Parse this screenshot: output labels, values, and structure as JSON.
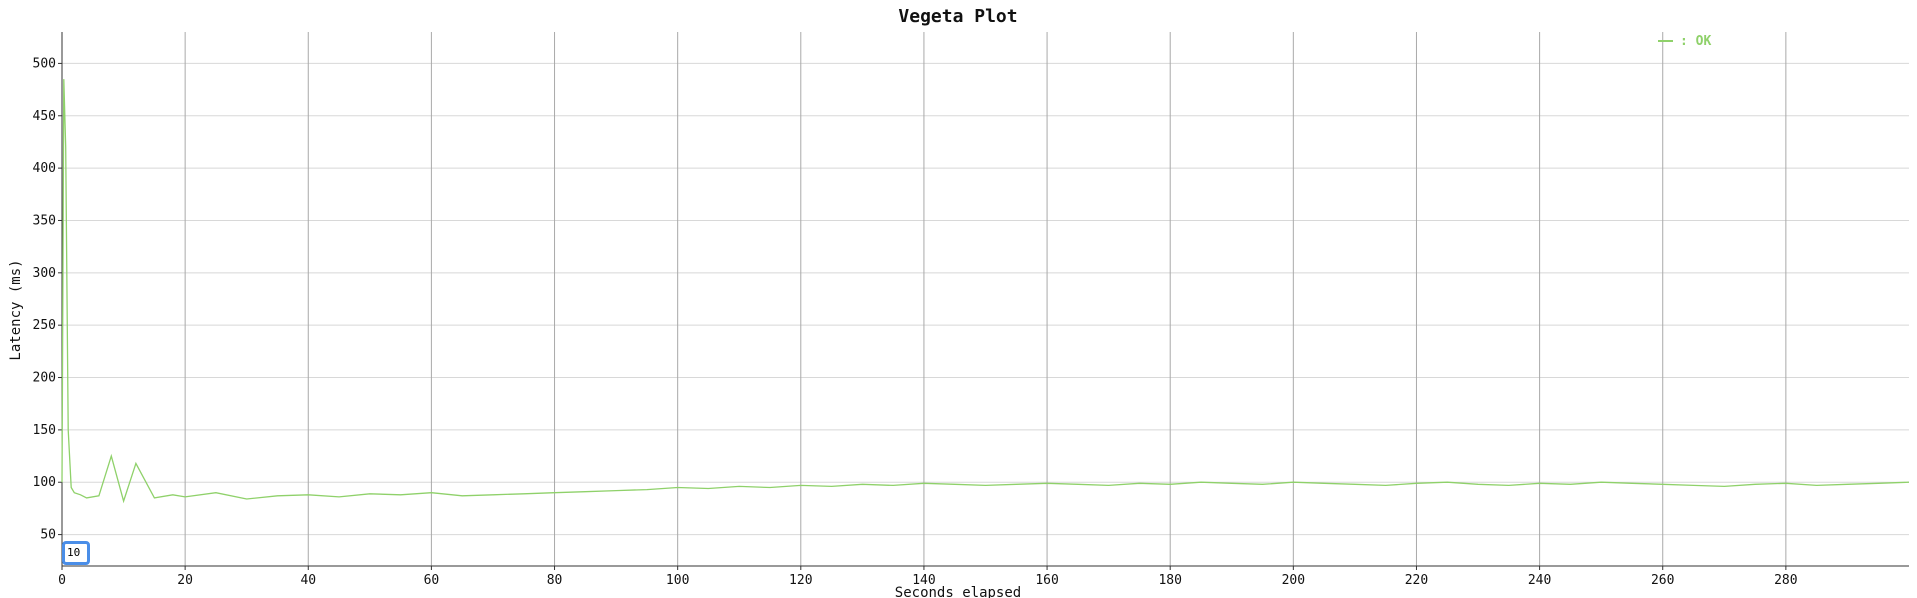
{
  "chart_data": {
    "type": "line",
    "title": "Vegeta Plot",
    "xlabel": "Seconds elapsed",
    "ylabel": "Latency (ms)",
    "xlim": [
      0,
      300
    ],
    "ylim": [
      20,
      530
    ],
    "x_ticks": [
      0,
      20,
      40,
      60,
      80,
      100,
      120,
      140,
      160,
      180,
      200,
      220,
      240,
      260,
      280
    ],
    "y_ticks": [
      50,
      100,
      150,
      200,
      250,
      300,
      350,
      400,
      450,
      500
    ],
    "grid": true,
    "legend": {
      "position": "top-right",
      "label": "OK"
    },
    "ymin_input_value": "10",
    "series": [
      {
        "name": "OK",
        "color": "#8fd16a",
        "x": [
          0,
          0.3,
          0.6,
          1.0,
          1.5,
          2,
          3,
          4,
          6,
          8,
          10,
          12,
          15,
          18,
          20,
          25,
          30,
          35,
          40,
          45,
          50,
          55,
          60,
          65,
          70,
          75,
          80,
          85,
          90,
          95,
          100,
          105,
          110,
          115,
          120,
          125,
          130,
          135,
          140,
          145,
          150,
          155,
          160,
          165,
          170,
          175,
          180,
          185,
          190,
          195,
          200,
          205,
          210,
          215,
          220,
          225,
          230,
          235,
          240,
          245,
          250,
          255,
          260,
          265,
          270,
          275,
          280,
          285,
          290,
          295,
          300
        ],
        "y": [
          100,
          485,
          420,
          150,
          95,
          90,
          88,
          85,
          87,
          125,
          82,
          118,
          85,
          88,
          86,
          90,
          84,
          87,
          88,
          86,
          89,
          88,
          90,
          87,
          88,
          89,
          90,
          91,
          92,
          93,
          95,
          94,
          96,
          95,
          97,
          96,
          98,
          97,
          99,
          98,
          97,
          98,
          99,
          98,
          97,
          99,
          98,
          100,
          99,
          98,
          100,
          99,
          98,
          97,
          99,
          100,
          98,
          97,
          99,
          98,
          100,
          99,
          98,
          97,
          96,
          98,
          99,
          97,
          98,
          99,
          100
        ]
      }
    ]
  }
}
